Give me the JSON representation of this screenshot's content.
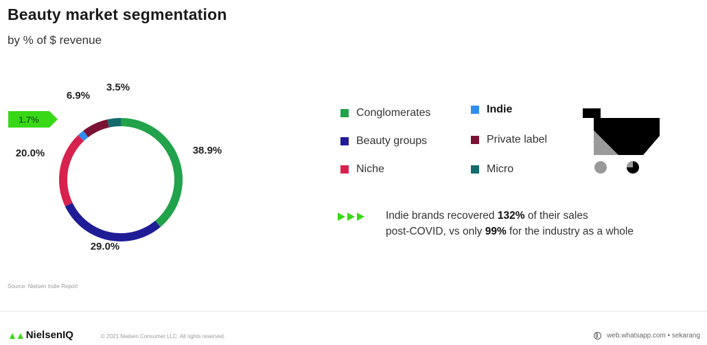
{
  "header": {
    "title": "Beauty market segmentation",
    "subtitle": "by % of $ revenue"
  },
  "chart_data": {
    "type": "pie",
    "title": "Beauty market segmentation",
    "subtitle": "by % of $ revenue",
    "slices": [
      {
        "name": "Conglomerates",
        "value": 38.9,
        "label": "38.9%",
        "color": "#22a24a"
      },
      {
        "name": "Beauty groups",
        "value": 29.0,
        "label": "29.0%",
        "color": "#1f1d96"
      },
      {
        "name": "Niche",
        "value": 20.0,
        "label": "20.0%",
        "color": "#d8224e"
      },
      {
        "name": "Indie",
        "value": 1.7,
        "label": "1.7%",
        "color": "#2f8df0",
        "highlighted": true
      },
      {
        "name": "Private label",
        "value": 6.9,
        "label": "6.9%",
        "color": "#7a1234"
      },
      {
        "name": "Micro",
        "value": 3.5,
        "label": "3.5%",
        "color": "#136b6b"
      }
    ],
    "highlight_color": "#39d816"
  },
  "legend": [
    {
      "label": "Conglomerates",
      "color": "#22a24a",
      "bold": false
    },
    {
      "label": "Indie",
      "color": "#2f8df0",
      "bold": true
    },
    {
      "label": "Beauty groups",
      "color": "#1f1d96",
      "bold": false
    },
    {
      "label": "Private label",
      "color": "#7a1234",
      "bold": false
    },
    {
      "label": "Niche",
      "color": "#d8224e",
      "bold": false
    },
    {
      "label": "Micro",
      "color": "#136b6b",
      "bold": false
    }
  ],
  "cart_icon": "shopping-cart-icon",
  "note": {
    "icon": "triple-arrow-icon",
    "part1": "Indie brands recovered ",
    "bold1": "132%",
    "part2": " of their sales",
    "part3": "post-COVID, vs only ",
    "bold2": "99%",
    "part4": " for the industry as a whole"
  },
  "footer": {
    "source": "Source: Nielsen Indie Report",
    "brand": "NielsenIQ",
    "brand_icon": "nielseniq-logo-icon",
    "copyright": "© 2021 Nielsen Consumer LLC. All rights reserved.",
    "share_icon": "globe-icon",
    "share_text": "web.whatsapp.com • sekarang"
  }
}
